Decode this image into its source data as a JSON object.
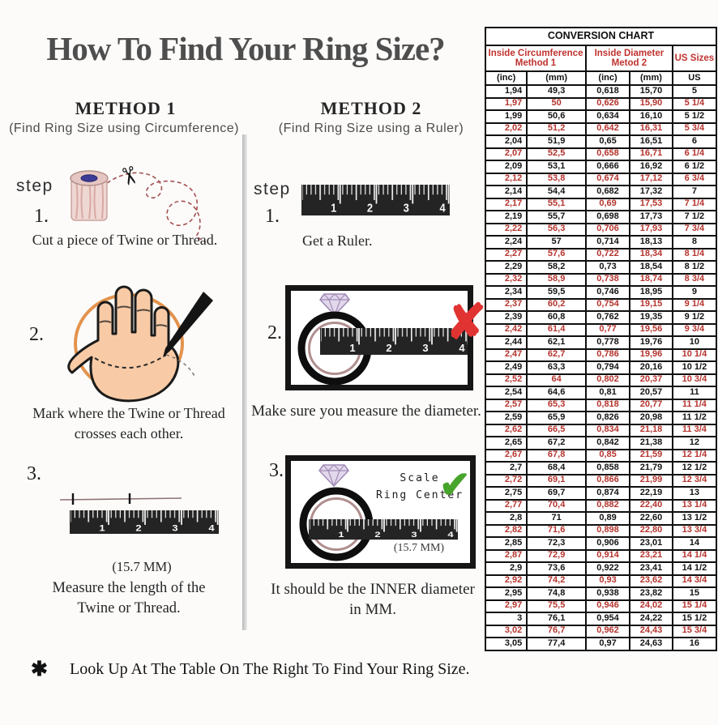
{
  "page": {
    "background": "#fcfbfa",
    "title": "How To Find Your Ring Size?",
    "footnote_symbol": "✱",
    "footnote": "Look Up At The Table On The Right To Find Your Ring Size."
  },
  "icons": {
    "scissors": "✂",
    "wrong_x": "✘",
    "check": "✔"
  },
  "colors": {
    "accent_red_rows": "#b5332d",
    "header_red": "#c0322e",
    "wrong_x_red": "#e23333",
    "check_green": "#47a42c",
    "circle_orange": "#e0873a",
    "table_border": "#0f0f0f"
  },
  "method1": {
    "heading": "METHOD 1",
    "subheading": "(Find Ring Size using Circumference)",
    "step_label": "step",
    "step1": {
      "num": "1.",
      "caption": "Cut a piece of  Twine or Thread."
    },
    "step2": {
      "num": "2.",
      "caption_line1": "Mark where the Twine or Thread",
      "caption_line2": "crosses each other."
    },
    "step3": {
      "num": "3.",
      "measurement": "(15.7 MM)",
      "caption_line1": "Measure the length of the",
      "caption_line2": "Twine or Thread."
    }
  },
  "method2": {
    "heading": "METHOD 2",
    "subheading": "(Find Ring Size using a Ruler)",
    "step_label": "step",
    "step1": {
      "num": "1.",
      "caption": "Get a Ruler."
    },
    "step2": {
      "num": "2.",
      "caption": "Make sure you measure the diameter."
    },
    "step3": {
      "num": "3.",
      "scale_line1": "Scale",
      "scale_line2": "Ring Center",
      "measurement": "(15.7 MM)",
      "caption_line1": "It should be the INNER diameter",
      "caption_line2": "in MM."
    }
  },
  "ruler_numbers": [
    "1",
    "2",
    "3",
    "4"
  ],
  "chart_data": {
    "type": "table",
    "title": "CONVERSION CHART",
    "column_groups": [
      {
        "line1": "Inside Circumference",
        "line2": "Method 1",
        "span": 2
      },
      {
        "line1": "Inside Diameter",
        "line2": "Metod 2",
        "span": 2
      },
      {
        "line1": "US Sizes",
        "span": 1
      }
    ],
    "columns": [
      "(inc)",
      "(mm)",
      "(inc)",
      "(mm)",
      "US"
    ],
    "rows": [
      [
        "1,94",
        "49,3",
        "0,618",
        "15,70",
        "5"
      ],
      [
        "1,97",
        "50",
        "0,626",
        "15,90",
        "5 1/4"
      ],
      [
        "1,99",
        "50,6",
        "0,634",
        "16,10",
        "5 1/2"
      ],
      [
        "2,02",
        "51,2",
        "0,642",
        "16,31",
        "5 3/4"
      ],
      [
        "2,04",
        "51,9",
        "0,65",
        "16,51",
        "6"
      ],
      [
        "2,07",
        "52,5",
        "0,658",
        "16,71",
        "6 1/4"
      ],
      [
        "2,09",
        "53,1",
        "0,666",
        "16,92",
        "6 1/2"
      ],
      [
        "2,12",
        "53,8",
        "0,674",
        "17,12",
        "6 3/4"
      ],
      [
        "2,14",
        "54,4",
        "0,682",
        "17,32",
        "7"
      ],
      [
        "2,17",
        "55,1",
        "0,69",
        "17,53",
        "7 1/4"
      ],
      [
        "2,19",
        "55,7",
        "0,698",
        "17,73",
        "7 1/2"
      ],
      [
        "2,22",
        "56,3",
        "0,706",
        "17,93",
        "7 3/4"
      ],
      [
        "2,24",
        "57",
        "0,714",
        "18,13",
        "8"
      ],
      [
        "2,27",
        "57,6",
        "0,722",
        "18,34",
        "8 1/4"
      ],
      [
        "2,29",
        "58,2",
        "0,73",
        "18,54",
        "8 1/2"
      ],
      [
        "2,32",
        "58,9",
        "0,738",
        "18,74",
        "8 3/4"
      ],
      [
        "2,34",
        "59,5",
        "0,746",
        "18,95",
        "9"
      ],
      [
        "2,37",
        "60,2",
        "0,754",
        "19,15",
        "9 1/4"
      ],
      [
        "2,39",
        "60,8",
        "0,762",
        "19,35",
        "9 1/2"
      ],
      [
        "2,42",
        "61,4",
        "0,77",
        "19,56",
        "9 3/4"
      ],
      [
        "2,44",
        "62,1",
        "0,778",
        "19,76",
        "10"
      ],
      [
        "2,47",
        "62,7",
        "0,786",
        "19,96",
        "10 1/4"
      ],
      [
        "2,49",
        "63,3",
        "0,794",
        "20,16",
        "10 1/2"
      ],
      [
        "2,52",
        "64",
        "0,802",
        "20,37",
        "10 3/4"
      ],
      [
        "2,54",
        "64,6",
        "0,81",
        "20,57",
        "11"
      ],
      [
        "2,57",
        "65,3",
        "0,818",
        "20,77",
        "11 1/4"
      ],
      [
        "2,59",
        "65,9",
        "0,826",
        "20,98",
        "11 1/2"
      ],
      [
        "2,62",
        "66,5",
        "0,834",
        "21,18",
        "11 3/4"
      ],
      [
        "2,65",
        "67,2",
        "0,842",
        "21,38",
        "12"
      ],
      [
        "2,67",
        "67,8",
        "0,85",
        "21,59",
        "12 1/4"
      ],
      [
        "2,7",
        "68,4",
        "0,858",
        "21,79",
        "12 1/2"
      ],
      [
        "2,72",
        "69,1",
        "0,866",
        "21,99",
        "12 3/4"
      ],
      [
        "2,75",
        "69,7",
        "0,874",
        "22,19",
        "13"
      ],
      [
        "2,77",
        "70,4",
        "0,882",
        "22,40",
        "13 1/4"
      ],
      [
        "2,8",
        "71",
        "0,89",
        "22,60",
        "13 1/2"
      ],
      [
        "2,82",
        "71,6",
        "0,898",
        "22,80",
        "13 3/4"
      ],
      [
        "2,85",
        "72,3",
        "0,906",
        "23,01",
        "14"
      ],
      [
        "2,87",
        "72,9",
        "0,914",
        "23,21",
        "14 1/4"
      ],
      [
        "2,9",
        "73,6",
        "0,922",
        "23,41",
        "14 1/2"
      ],
      [
        "2,92",
        "74,2",
        "0,93",
        "23,62",
        "14 3/4"
      ],
      [
        "2,95",
        "74,8",
        "0,938",
        "23,82",
        "15"
      ],
      [
        "2,97",
        "75,5",
        "0,946",
        "24,02",
        "15 1/4"
      ],
      [
        "3",
        "76,1",
        "0,954",
        "24,22",
        "15 1/2"
      ],
      [
        "3,02",
        "76,7",
        "0,962",
        "24,43",
        "15 3/4"
      ],
      [
        "3,05",
        "77,4",
        "0,97",
        "24,63",
        "16"
      ]
    ]
  }
}
